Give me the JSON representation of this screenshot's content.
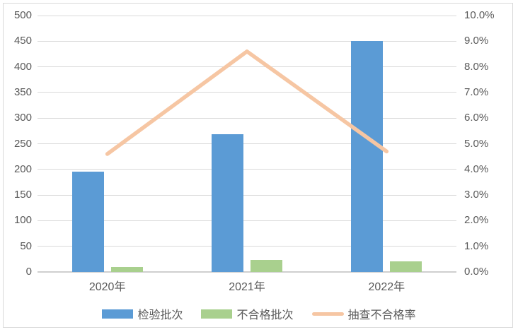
{
  "chart_data": {
    "type": "bar",
    "subtype": "combo-bar-line",
    "title": "",
    "categories": [
      "2020年",
      "2021年",
      "2022年"
    ],
    "series": [
      {
        "name": "检验批次",
        "type": "bar",
        "axis": "left",
        "values": [
          195,
          268,
          450
        ],
        "color": "#5B9BD5"
      },
      {
        "name": "不合格批次",
        "type": "bar",
        "axis": "left",
        "values": [
          9,
          23,
          21
        ],
        "color": "#A9D08E"
      },
      {
        "name": "抽查不合格率",
        "type": "line",
        "axis": "right",
        "values": [
          4.6,
          8.6,
          4.7
        ],
        "unit": "%",
        "color": "#F6C6A3"
      }
    ],
    "left_axis": {
      "min": 0,
      "max": 500,
      "step": 50,
      "tick_labels": [
        "0",
        "50",
        "100",
        "150",
        "200",
        "250",
        "300",
        "350",
        "400",
        "450",
        "500"
      ]
    },
    "right_axis": {
      "min": 0,
      "max": 10,
      "step": 1,
      "tick_labels": [
        "0.0%",
        "1.0%",
        "2.0%",
        "3.0%",
        "4.0%",
        "5.0%",
        "6.0%",
        "7.0%",
        "8.0%",
        "9.0%",
        "10.0%"
      ]
    },
    "grid": true,
    "legend_position": "bottom"
  },
  "colors": {
    "text": "#595959",
    "gridline": "#D9D9D9",
    "axis_line": "#CFCFCF",
    "border": "#D9D9D9",
    "background": "#FFFFFF"
  }
}
